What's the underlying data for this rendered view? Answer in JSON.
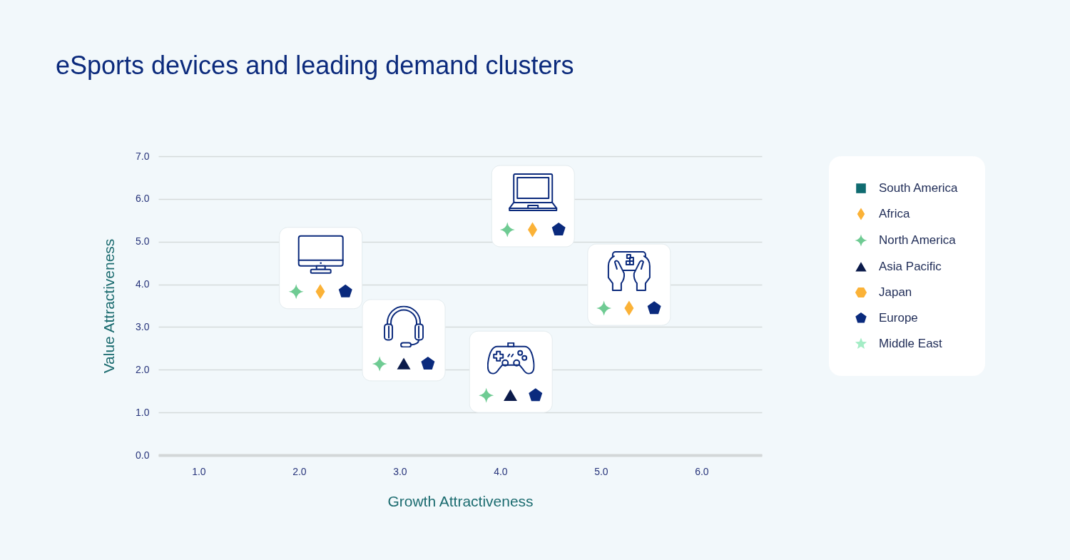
{
  "chart_data": {
    "type": "scatter",
    "title": "eSports devices and leading demand clusters",
    "xlabel": "Growth Attractiveness",
    "ylabel": "Value Attractiveness",
    "xlim": [
      0.6,
      6.6
    ],
    "ylim": [
      0,
      7
    ],
    "xticks": [
      {
        "value": 1,
        "label": "1.0"
      },
      {
        "value": 2,
        "label": "2.0"
      },
      {
        "value": 3,
        "label": "3.0"
      },
      {
        "value": 4,
        "label": "4.0"
      },
      {
        "value": 5,
        "label": "5.0"
      },
      {
        "value": 6,
        "label": "6.0"
      }
    ],
    "yticks": [
      {
        "value": 0,
        "label": "0.0"
      },
      {
        "value": 1,
        "label": "1.0"
      },
      {
        "value": 2,
        "label": "2.0"
      },
      {
        "value": 3,
        "label": "3.0"
      },
      {
        "value": 4,
        "label": "4.0"
      },
      {
        "value": 5,
        "label": "5.0"
      },
      {
        "value": 6,
        "label": "6.0"
      },
      {
        "value": 7,
        "label": "7.0"
      }
    ],
    "grid": "y",
    "legend": "right",
    "series": [
      {
        "name": "South America",
        "color": "#0f6b70",
        "marker": "square"
      },
      {
        "name": "Africa",
        "color": "#fbb237",
        "marker": "diamond",
        "x": [
          2.21,
          4.32,
          5.28
        ],
        "values": [
          3.83,
          5.28,
          3.44
        ]
      },
      {
        "name": "North America",
        "color": "#6fcb93",
        "marker": "cross",
        "x": [
          1.97,
          2.8,
          4.07,
          3.86,
          5.03
        ],
        "values": [
          3.83,
          2.14,
          5.28,
          1.4,
          3.44
        ]
      },
      {
        "name": "Asia Pacific",
        "color": "#0b1a4a",
        "marker": "triangle",
        "x": [
          3.04,
          4.1
        ],
        "values": [
          2.14,
          1.4
        ]
      },
      {
        "name": "Japan",
        "color": "#fbb237"
      },
      {
        "name": "Europe",
        "color": "#0a2a7d",
        "x": [
          2.46,
          3.28,
          4.58,
          4.35,
          5.53
        ],
        "values": [
          3.83,
          2.14,
          5.28,
          1.4,
          3.44
        ]
      },
      {
        "name": "Middle East",
        "color": "#a4edc6",
        "marker": "star"
      }
    ]
  }
}
